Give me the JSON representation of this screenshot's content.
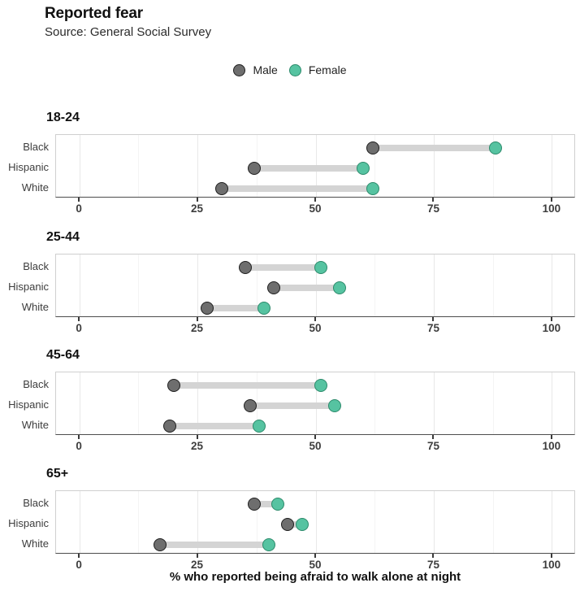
{
  "title": "Reported fear",
  "subtitle": "Source: General Social Survey",
  "legend": {
    "items": [
      {
        "label": "Male",
        "fill": "#6e6e6e",
        "border": "#1f1f1f"
      },
      {
        "label": "Female",
        "fill": "#56c3a1",
        "border": "#2c8a6b"
      }
    ]
  },
  "chart_data": {
    "type": "dumbbell",
    "title": "Reported fear",
    "subtitle": "Source: General Social Survey",
    "xlabel": "% who reported being afraid to walk alone at night",
    "x_ticks": [
      0,
      25,
      50,
      75,
      100
    ],
    "x_minor_ticks": [
      12.5,
      37.5,
      62.5,
      87.5
    ],
    "x_range": [
      -5,
      105
    ],
    "categories": [
      "Black",
      "Hispanic",
      "White"
    ],
    "series_names": [
      "Male",
      "Female"
    ],
    "panels": [
      {
        "label": "18-24",
        "rows": [
          {
            "category": "Black",
            "male": 62,
            "female": 88
          },
          {
            "category": "Hispanic",
            "male": 37,
            "female": 60
          },
          {
            "category": "White",
            "male": 30,
            "female": 62
          }
        ]
      },
      {
        "label": "25-44",
        "rows": [
          {
            "category": "Black",
            "male": 35,
            "female": 51
          },
          {
            "category": "Hispanic",
            "male": 41,
            "female": 55
          },
          {
            "category": "White",
            "male": 27,
            "female": 39
          }
        ]
      },
      {
        "label": "45-64",
        "rows": [
          {
            "category": "Black",
            "male": 20,
            "female": 51
          },
          {
            "category": "Hispanic",
            "male": 36,
            "female": 54
          },
          {
            "category": "White",
            "male": 19,
            "female": 38
          }
        ]
      },
      {
        "label": "65+",
        "rows": [
          {
            "category": "Black",
            "male": 37,
            "female": 42
          },
          {
            "category": "Hispanic",
            "male": 44,
            "female": 47
          },
          {
            "category": "White",
            "male": 17,
            "female": 40
          }
        ]
      }
    ],
    "colors": {
      "male_fill": "#6e6e6e",
      "male_border": "#1f1f1f",
      "female_fill": "#56c3a1",
      "female_border": "#2c8a6b",
      "connector": "#d4d4d4"
    },
    "legend_position": "top-center",
    "grid": true
  }
}
